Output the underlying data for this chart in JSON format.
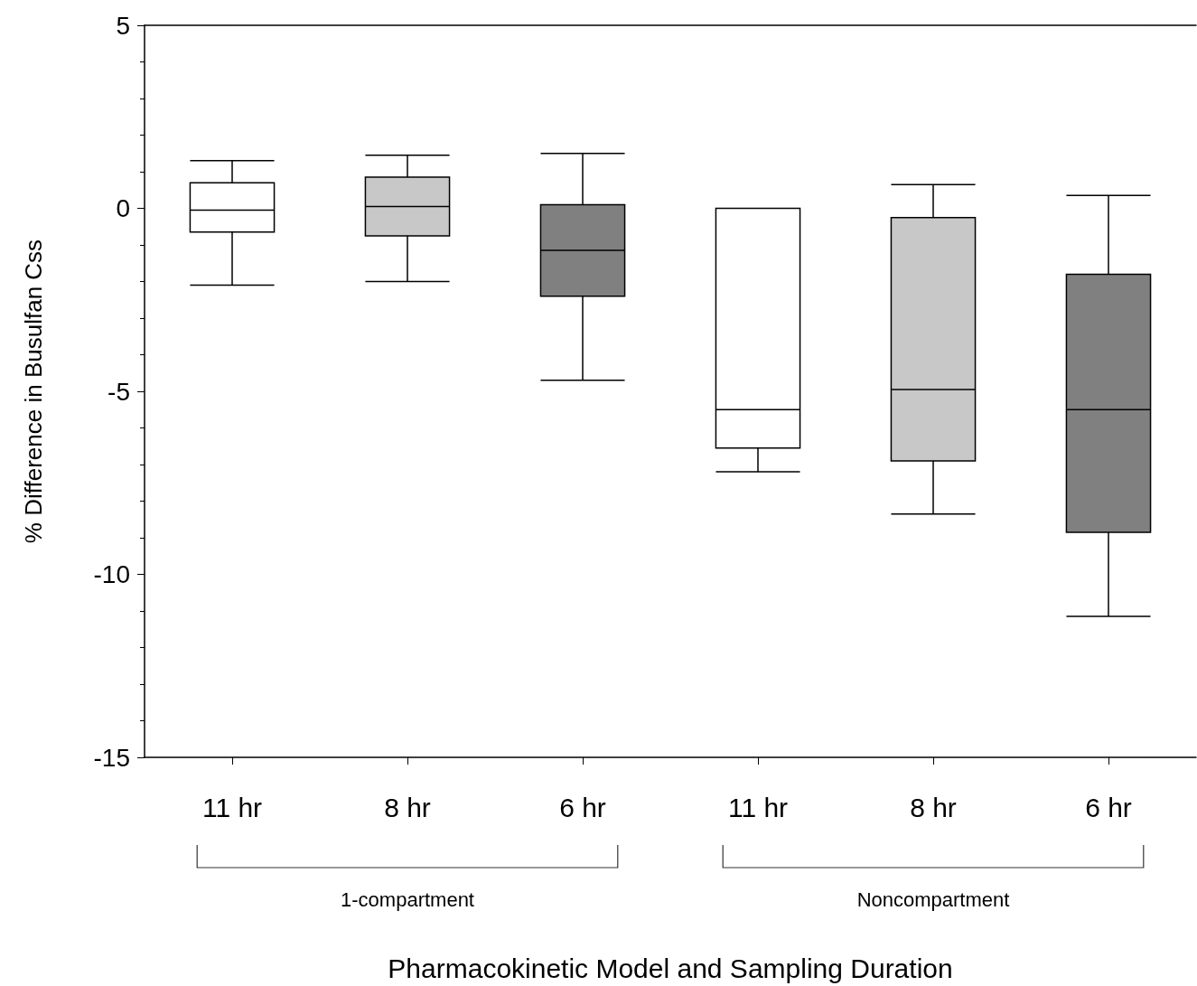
{
  "chart_data": {
    "type": "box",
    "xlabel": "Pharmacokinetic Model and Sampling Duration",
    "ylabel": "% Difference in Busulfan Css",
    "categories": [
      "11 hr",
      "8 hr",
      "6 hr",
      "11 hr",
      "8 hr",
      "6 hr"
    ],
    "colors": [
      "#ffffff",
      "#c8c8c8",
      "#808080",
      "#ffffff",
      "#c8c8c8",
      "#808080"
    ],
    "boxes": [
      {
        "low": -2.1,
        "q1": -0.65,
        "median": -0.05,
        "q3": 0.7,
        "high": 1.3
      },
      {
        "low": -2.0,
        "q1": -0.75,
        "median": 0.05,
        "q3": 0.85,
        "high": 1.45
      },
      {
        "low": -4.7,
        "q1": -2.4,
        "median": -1.15,
        "q3": 0.1,
        "high": 1.5
      },
      {
        "low": -7.2,
        "q1": -6.55,
        "median": -5.5,
        "q3": 0,
        "high": 0
      },
      {
        "low": -8.35,
        "q1": -6.9,
        "median": -4.95,
        "q3": -0.25,
        "high": 0.65
      },
      {
        "low": -11.15,
        "q1": -8.85,
        "median": -5.5,
        "q3": -1.8,
        "high": 0.35
      }
    ],
    "ylim": [
      -15,
      5
    ],
    "yticks": [
      -15,
      -10,
      -5,
      0,
      5
    ],
    "annotations": [
      "1-compartment",
      "Noncompartment"
    ]
  }
}
